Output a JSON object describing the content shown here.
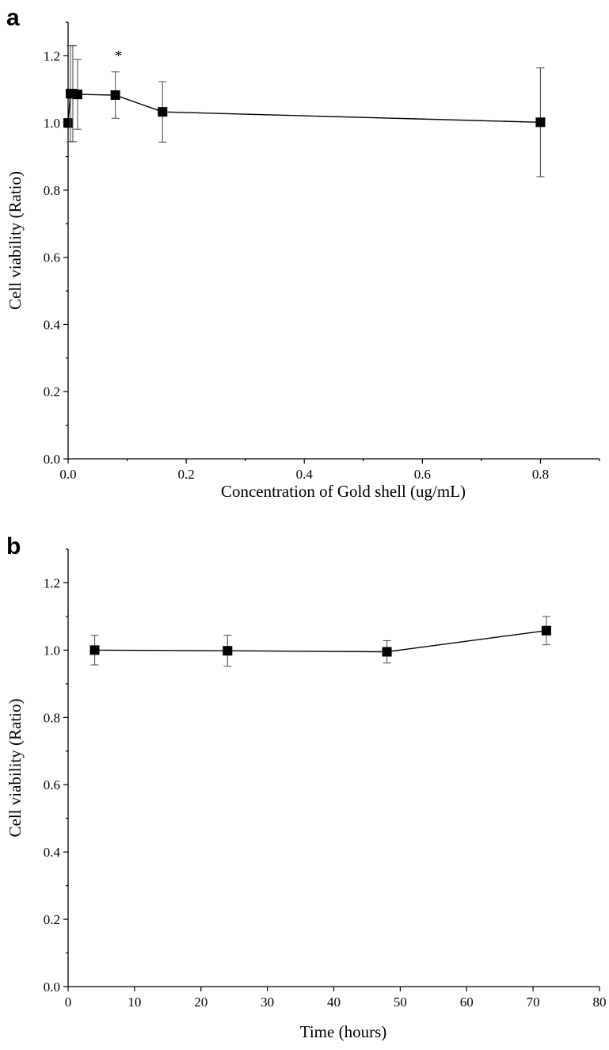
{
  "chart_data": [
    {
      "panel_label": "a",
      "type": "line",
      "xlabel": "Concentration of Gold shell (ug/mL)",
      "ylabel": "Cell viability (Ratio)",
      "xlim": [
        0,
        0.9
      ],
      "ylim": [
        0,
        1.3
      ],
      "xticks": [
        0.0,
        0.2,
        0.4,
        0.6,
        0.8
      ],
      "xtick_labels": [
        "0.0",
        "0.2",
        "0.4",
        "0.6",
        "0.8"
      ],
      "yticks": [
        0.0,
        0.2,
        0.4,
        0.6,
        0.8,
        1.0,
        1.2
      ],
      "ytick_labels": [
        "0.0",
        "0.2",
        "0.4",
        "0.6",
        "0.8",
        "1.0",
        "1.2"
      ],
      "grid": false,
      "marker": "square",
      "x": [
        0.0,
        0.004,
        0.008,
        0.016,
        0.08,
        0.16,
        0.8
      ],
      "y": [
        1.0,
        1.087,
        1.087,
        1.085,
        1.083,
        1.033,
        1.002
      ],
      "error": [
        0.0,
        0.143,
        0.143,
        0.104,
        0.069,
        0.09,
        0.162
      ],
      "annotations": [
        {
          "x": 0.08,
          "y": 1.152,
          "text": "*"
        }
      ]
    },
    {
      "panel_label": "b",
      "type": "line",
      "xlabel": "Time (hours)",
      "ylabel": "Cell viability (Ratio)",
      "xlim": [
        0,
        80
      ],
      "ylim": [
        0,
        1.3
      ],
      "xticks": [
        0,
        10,
        20,
        30,
        40,
        50,
        60,
        70,
        80
      ],
      "xtick_labels": [
        "0",
        "10",
        "20",
        "30",
        "40",
        "50",
        "60",
        "70",
        "80"
      ],
      "yticks": [
        0.0,
        0.2,
        0.4,
        0.6,
        0.8,
        1.0,
        1.2
      ],
      "ytick_labels": [
        "0.0",
        "0.2",
        "0.4",
        "0.6",
        "0.8",
        "1.0",
        "1.2"
      ],
      "grid": false,
      "marker": "square",
      "x": [
        4,
        24,
        48,
        72
      ],
      "y": [
        1.0,
        0.998,
        0.995,
        1.058
      ],
      "error": [
        0.044,
        0.046,
        0.033,
        0.042
      ],
      "annotations": []
    }
  ]
}
